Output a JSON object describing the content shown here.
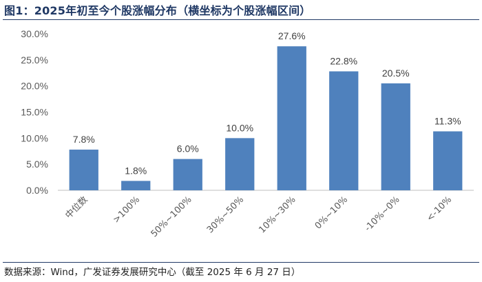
{
  "figure": {
    "title": "图1：2025年初至今个股涨幅分布（横坐标为个股涨幅区间）",
    "source": "数据来源：Wind，广发证券发展研究中心（截至 2025 年 6 月 27 日）"
  },
  "chart_data": {
    "type": "bar",
    "title": "",
    "xlabel": "",
    "ylabel": "",
    "categories": [
      "中位数",
      ">100%",
      "50%~100%",
      "30%~50%",
      "10%~30%",
      "0%~10%",
      "-10%~0%",
      "<-10%"
    ],
    "values": [
      7.8,
      1.8,
      6.0,
      10.0,
      27.6,
      22.8,
      20.5,
      11.3
    ],
    "data_labels": [
      "7.8%",
      "1.8%",
      "6.0%",
      "10.0%",
      "27.6%",
      "22.8%",
      "20.5%",
      "11.3%"
    ],
    "ylim": [
      0,
      30
    ],
    "yticks": [
      0,
      5,
      10,
      15,
      20,
      25,
      30
    ],
    "ytick_labels": [
      "0.0%",
      "5.0%",
      "10.0%",
      "15.0%",
      "20.0%",
      "25.0%",
      "30.0%"
    ],
    "bar_color": "#4f81bd",
    "grid": false,
    "legend": "none"
  }
}
